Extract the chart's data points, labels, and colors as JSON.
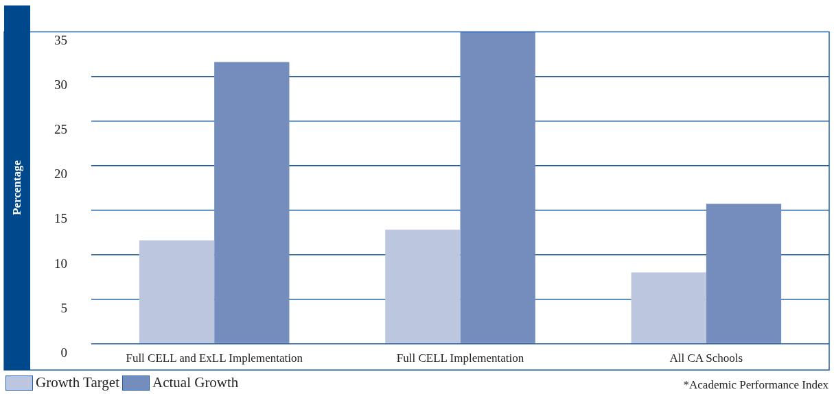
{
  "chart_data": {
    "type": "bar",
    "ylabel": "Percentage",
    "categories": [
      "Full CELL and ExLL Implementation",
      "Full CELL Implementation",
      "All CA Schools"
    ],
    "series": [
      {
        "name": "Growth Target",
        "color": "#bcc6df",
        "values": [
          11.6,
          12.8,
          8
        ]
      },
      {
        "name": "Actual Growth",
        "color": "#758dbc",
        "values": [
          31.6,
          35,
          15.7
        ]
      }
    ],
    "ylim": [
      0,
      35
    ],
    "yticks": [
      0,
      5,
      10,
      15,
      20,
      25,
      30,
      35
    ],
    "grid": "y",
    "legend": "bottom left",
    "annotations": [
      "*Academic Performance Index"
    ]
  }
}
